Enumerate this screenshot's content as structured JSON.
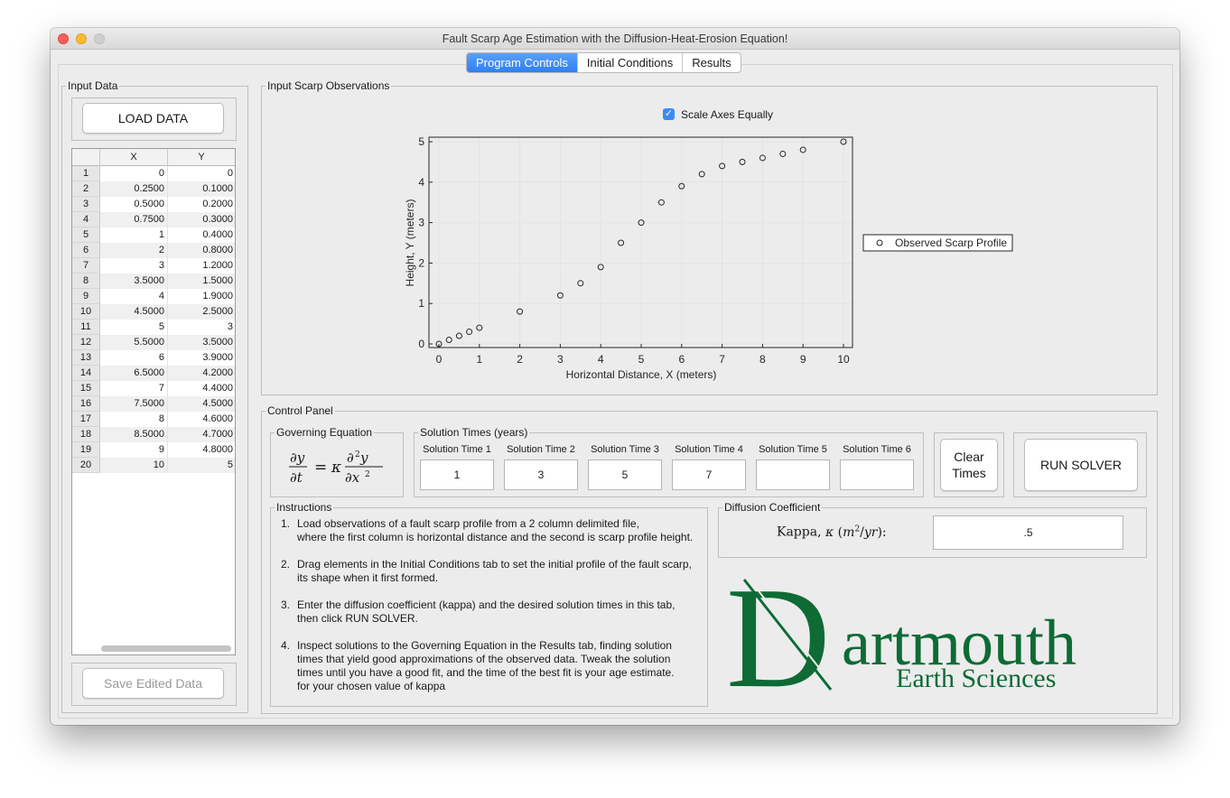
{
  "window": {
    "title": "Fault Scarp Age Estimation with the Diffusion-Heat-Erosion Equation!"
  },
  "tabs": [
    {
      "label": "Program Controls",
      "active": true
    },
    {
      "label": "Initial Conditions",
      "active": false
    },
    {
      "label": "Results",
      "active": false
    }
  ],
  "input_data": {
    "legend": "Input Data",
    "load_button": "LOAD DATA",
    "save_button": "Save Edited Data",
    "columns": [
      "X",
      "Y"
    ],
    "rows": [
      [
        "1",
        "0",
        "0"
      ],
      [
        "2",
        "0.2500",
        "0.1000"
      ],
      [
        "3",
        "0.5000",
        "0.2000"
      ],
      [
        "4",
        "0.7500",
        "0.3000"
      ],
      [
        "5",
        "1",
        "0.4000"
      ],
      [
        "6",
        "2",
        "0.8000"
      ],
      [
        "7",
        "3",
        "1.2000"
      ],
      [
        "8",
        "3.5000",
        "1.5000"
      ],
      [
        "9",
        "4",
        "1.9000"
      ],
      [
        "10",
        "4.5000",
        "2.5000"
      ],
      [
        "11",
        "5",
        "3"
      ],
      [
        "12",
        "5.5000",
        "3.5000"
      ],
      [
        "13",
        "6",
        "3.9000"
      ],
      [
        "14",
        "6.5000",
        "4.2000"
      ],
      [
        "15",
        "7",
        "4.4000"
      ],
      [
        "16",
        "7.5000",
        "4.5000"
      ],
      [
        "17",
        "8",
        "4.6000"
      ],
      [
        "18",
        "8.5000",
        "4.7000"
      ],
      [
        "19",
        "9",
        "4.8000"
      ],
      [
        "20",
        "10",
        "5"
      ]
    ]
  },
  "observations": {
    "legend": "Input Scarp Observations",
    "checkbox_label": "Scale Axes Equally",
    "checkbox_checked": true
  },
  "chart_data": {
    "type": "scatter",
    "xlabel": "Horizontal Distance, X (meters)",
    "ylabel": "Height, Y (meters)",
    "xlim": [
      0,
      10
    ],
    "ylim": [
      0,
      5
    ],
    "xticks": [
      0,
      1,
      2,
      3,
      4,
      5,
      6,
      7,
      8,
      9,
      10
    ],
    "yticks": [
      0,
      1,
      2,
      3,
      4,
      5
    ],
    "grid": true,
    "legend_placement": "outside-right",
    "series": [
      {
        "name": "Observed Scarp Profile",
        "marker": "open-circle",
        "x": [
          0,
          0.25,
          0.5,
          0.75,
          1,
          2,
          3,
          3.5,
          4,
          4.5,
          5,
          5.5,
          6,
          6.5,
          7,
          7.5,
          8,
          8.5,
          9,
          10
        ],
        "y": [
          0,
          0.1,
          0.2,
          0.3,
          0.4,
          0.8,
          1.2,
          1.5,
          1.9,
          2.5,
          3,
          3.5,
          3.9,
          4.2,
          4.4,
          4.5,
          4.6,
          4.7,
          4.8,
          5
        ]
      }
    ]
  },
  "control_panel": {
    "legend": "Control Panel",
    "governing_equation": {
      "legend": "Governing Equation"
    },
    "solution_times": {
      "legend": "Solution Times (years)",
      "items": [
        {
          "label": "Solution Time 1",
          "value": "1"
        },
        {
          "label": "Solution Time 2",
          "value": "3"
        },
        {
          "label": "Solution Time 3",
          "value": "5"
        },
        {
          "label": "Solution Time 4",
          "value": "7"
        },
        {
          "label": "Solution Time 5",
          "value": ""
        },
        {
          "label": "Solution Time 6",
          "value": ""
        }
      ]
    },
    "clear_button_line1": "Clear",
    "clear_button_line2": "Times",
    "run_button": "RUN SOLVER",
    "instructions": {
      "legend": "Instructions",
      "items": [
        {
          "num": "1.",
          "line1": "Load observations of a fault scarp profile from a 2 column delimited file,",
          "line2": "where the first column is horizontal distance and the second is scarp profile height.",
          "line3": ""
        },
        {
          "num": "2.",
          "line1": "Drag elements in the Initial Conditions tab to set the initial profile of the fault scarp,",
          "line2": "its shape when it first formed.",
          "line3": ""
        },
        {
          "num": "3.",
          "line1": "Enter the diffusion coefficient (kappa) and the desired solution times in this tab,",
          "line2": "then click RUN SOLVER.",
          "line3": ""
        },
        {
          "num": "4.",
          "line1": "Inspect solutions to the Governing Equation in the Results tab, finding solution",
          "line2": "times that yield good approximations of the observed data. Tweak the solution",
          "line3": "times until you have a good fit, and the time of the best fit is your age estimate.",
          "line4": "for your chosen value of kappa"
        }
      ]
    },
    "diffusion": {
      "legend": "Diffusion Coefficient",
      "label_word": "Kappa,",
      "value": ".5"
    }
  },
  "logo": {
    "big_letter": "D",
    "word": "artmouth",
    "subtitle": "Earth Sciences",
    "color": "#0e6b35"
  }
}
